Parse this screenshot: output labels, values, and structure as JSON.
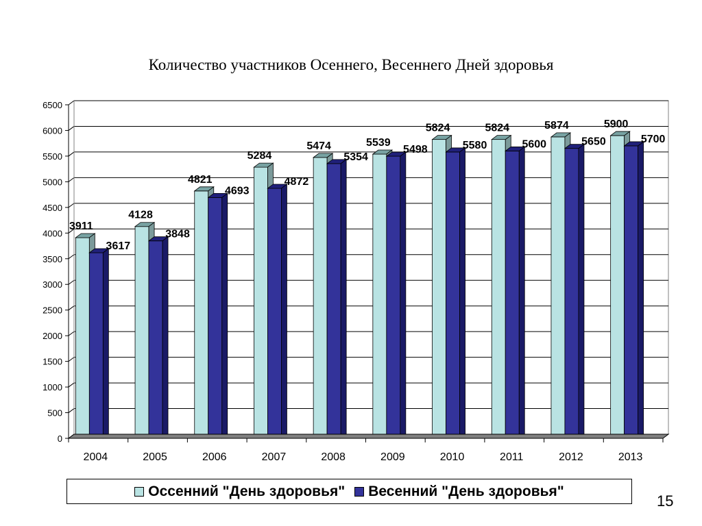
{
  "chart_data": {
    "type": "bar",
    "title": "Количество участников Осеннего, Весеннего Дней здоровья",
    "categories": [
      "2004",
      "2005",
      "2006",
      "2007",
      "2008",
      "2009",
      "2010",
      "2011",
      "2012",
      "2013"
    ],
    "series": [
      {
        "name": "Оссенний \"День здоровья\"",
        "values": [
          3911,
          4128,
          4821,
          5284,
          5474,
          5539,
          5824,
          5824,
          5874,
          5900
        ]
      },
      {
        "name": "Весенний \"День здоровья\"",
        "values": [
          3617,
          3848,
          4693,
          4872,
          5354,
          5498,
          5580,
          5600,
          5650,
          5700
        ]
      }
    ],
    "ylim": [
      0,
      6500
    ],
    "yticks": [
      0,
      500,
      1000,
      1500,
      2000,
      2500,
      3000,
      3500,
      4000,
      4500,
      5000,
      5500,
      6000,
      6500
    ],
    "xlabel": "",
    "ylabel": "",
    "grid": true,
    "style": "3d-column",
    "legend_position": "bottom",
    "data_labels": true
  },
  "colors": {
    "series_0_fill": "#b9e3e3",
    "series_0_top": "#78a3a3",
    "series_0_side": "#7b9a9a",
    "series_1_fill": "#33339a",
    "series_1_top": "#20207a",
    "series_1_side": "#1a1a66",
    "grid": "#000000",
    "floor": "#808080"
  },
  "page_number": "15"
}
